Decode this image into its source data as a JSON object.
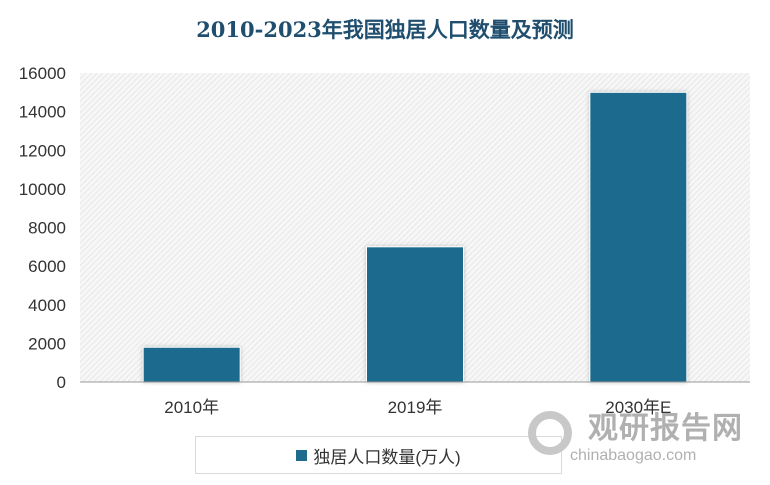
{
  "chart_data": {
    "type": "bar",
    "title": "2010-2023年我国独居人口数量及预测",
    "categories": [
      "2010年",
      "2019年",
      "2030年E"
    ],
    "series": [
      {
        "name": "独居人口数量(万人)",
        "values": [
          1800,
          7000,
          15000
        ]
      }
    ],
    "ylim": [
      0,
      16000
    ],
    "yticks": [
      0,
      2000,
      4000,
      6000,
      8000,
      10000,
      12000,
      14000,
      16000
    ],
    "grid": false,
    "legend": "bottom",
    "colors": {
      "bar": "#1f6b8e"
    }
  },
  "watermark": {
    "cn": "观研报告网",
    "en": "chinabaogao.com"
  }
}
